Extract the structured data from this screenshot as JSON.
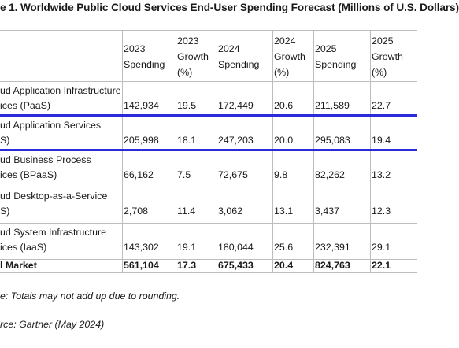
{
  "title": "e 1. Worldwide Public Cloud Services End-User Spending Forecast (Millions of U.S. Dollars)",
  "headers": {
    "c1": [
      "2023",
      "Spending"
    ],
    "c2": [
      "2023",
      "Growth",
      "(%)"
    ],
    "c3": [
      "2024",
      "Spending"
    ],
    "c4": [
      "2024",
      "Growth",
      "(%)"
    ],
    "c5": [
      "2025",
      "Spending"
    ],
    "c6": [
      "2025",
      "Growth",
      "(%)"
    ]
  },
  "rows": [
    {
      "label": [
        "ud Application Infrastructure",
        "ices (PaaS)"
      ],
      "values": [
        "142,934",
        "19.5",
        "172,449",
        "20.6",
        "211,589",
        "22.7"
      ]
    },
    {
      "label": [
        "ud Application Services",
        "S)"
      ],
      "values": [
        "205,998",
        "18.1",
        "247,203",
        "20.0",
        "295,083",
        "19.4"
      ]
    },
    {
      "label": [
        "ud Business Process",
        "ices (BPaaS)"
      ],
      "values": [
        "66,162",
        "7.5",
        "72,675",
        "9.8",
        "82,262",
        "13.2"
      ]
    },
    {
      "label": [
        "ud Desktop-as-a-Service",
        "S)"
      ],
      "values": [
        "2,708",
        "11.4",
        "3,062",
        "13.1",
        "3,437",
        "12.3"
      ]
    },
    {
      "label": [
        "ud System Infrastructure",
        "ices (IaaS)"
      ],
      "values": [
        "143,302",
        "19.1",
        "180,044",
        "25.6",
        "232,391",
        "29.1"
      ]
    }
  ],
  "total": {
    "label": "l Market",
    "values": [
      "561,104",
      "17.3",
      "675,433",
      "20.4",
      "824,763",
      "22.1"
    ]
  },
  "notes": {
    "note": "e: Totals may not add up due to rounding.",
    "source": "rce: Gartner (May 2024)"
  },
  "colors": {
    "highlight": "#2b2bd9",
    "rule": "#bdbdbd"
  }
}
